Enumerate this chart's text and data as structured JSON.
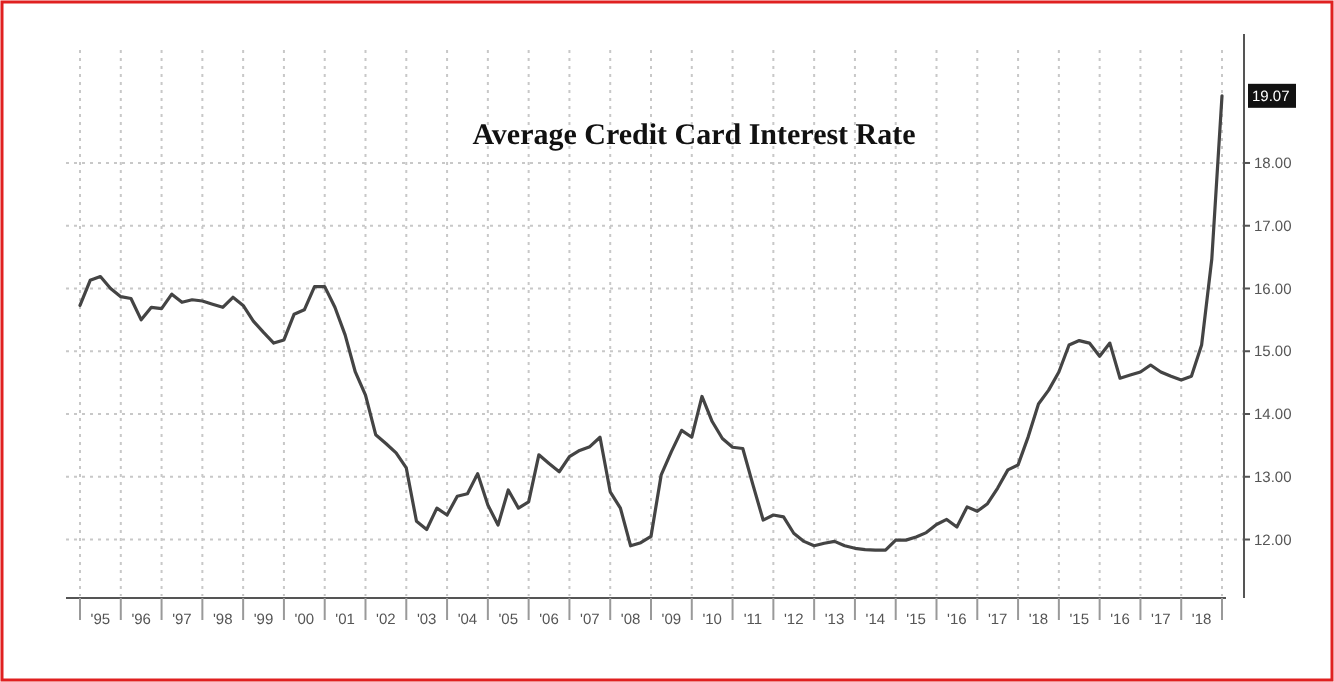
{
  "chart_data": {
    "type": "line",
    "title": "Average Credit Card Interest Rate",
    "categories": [
      null,
      null,
      "'95",
      null,
      null,
      null,
      "'96",
      null,
      null,
      null,
      "'97",
      null,
      null,
      null,
      "'98",
      null,
      null,
      null,
      "'99",
      null,
      null,
      null,
      "'00",
      null,
      null,
      null,
      "'01",
      null,
      null,
      null,
      "'02",
      null,
      null,
      null,
      "'03",
      null,
      null,
      null,
      "'04",
      null,
      null,
      null,
      "'05",
      null,
      null,
      null,
      "'06",
      null,
      null,
      null,
      "'07",
      null,
      null,
      null,
      "'08",
      null,
      null,
      null,
      "'09",
      null,
      null,
      null,
      "'10",
      null,
      null,
      null,
      "'11",
      null,
      null,
      null,
      "'12",
      null,
      null,
      null,
      "'13",
      null,
      null,
      null,
      "'14",
      null,
      null,
      null,
      "'15",
      null,
      null,
      null,
      "'16",
      null,
      null,
      null,
      "'17",
      null,
      null,
      null,
      "'18",
      null,
      null,
      null,
      "'15",
      null,
      null,
      null,
      "'16",
      null,
      null,
      null,
      "'17",
      null,
      null,
      null,
      "'18",
      null,
      null
    ],
    "ylim": [
      11.1,
      19.8
    ],
    "yticks": [
      {
        "value": 12,
        "label": "12.00"
      },
      {
        "value": 13,
        "label": "13.00"
      },
      {
        "value": 14,
        "label": "14.00"
      },
      {
        "value": 15,
        "label": "15.00"
      },
      {
        "value": 16,
        "label": "16.00"
      },
      {
        "value": 17,
        "label": "17.00"
      },
      {
        "value": 18,
        "label": "18.00"
      }
    ],
    "grid": true,
    "line_style": "solid",
    "marker": "none",
    "annotations": [
      {
        "text": "19.07",
        "y": 19.07
      }
    ],
    "series": [
      {
        "color": "#444444",
        "values": [
          15.73,
          16.13,
          16.19,
          16.0,
          15.87,
          15.84,
          15.5,
          15.7,
          15.68,
          15.91,
          15.78,
          15.82,
          15.8,
          15.75,
          15.7,
          15.86,
          15.73,
          15.48,
          15.3,
          15.13,
          15.18,
          15.59,
          15.66,
          16.03,
          16.03,
          15.7,
          15.26,
          14.67,
          14.3,
          13.67,
          13.53,
          13.38,
          13.14,
          12.29,
          12.16,
          12.5,
          12.39,
          12.69,
          12.73,
          13.05,
          12.55,
          12.23,
          12.79,
          12.5,
          12.6,
          13.35,
          13.21,
          13.08,
          13.32,
          13.42,
          13.48,
          13.63,
          12.76,
          12.5,
          11.9,
          11.95,
          12.05,
          13.03,
          13.4,
          13.74,
          13.63,
          14.28,
          13.88,
          13.61,
          13.47,
          13.45,
          12.87,
          12.31,
          12.39,
          12.36,
          12.1,
          11.97,
          11.9,
          11.94,
          11.97,
          11.9,
          11.86,
          11.84,
          11.83,
          11.83,
          11.99,
          11.99,
          12.04,
          12.11,
          12.24,
          12.32,
          12.2,
          12.52,
          12.45,
          12.57,
          12.82,
          13.11,
          13.19,
          13.64,
          14.16,
          14.38,
          14.67,
          15.1,
          15.17,
          15.13,
          14.92,
          15.13,
          14.57,
          14.62,
          14.67,
          14.78,
          14.67,
          14.6,
          14.54,
          14.6,
          15.1,
          16.47,
          19.07
        ]
      }
    ]
  }
}
